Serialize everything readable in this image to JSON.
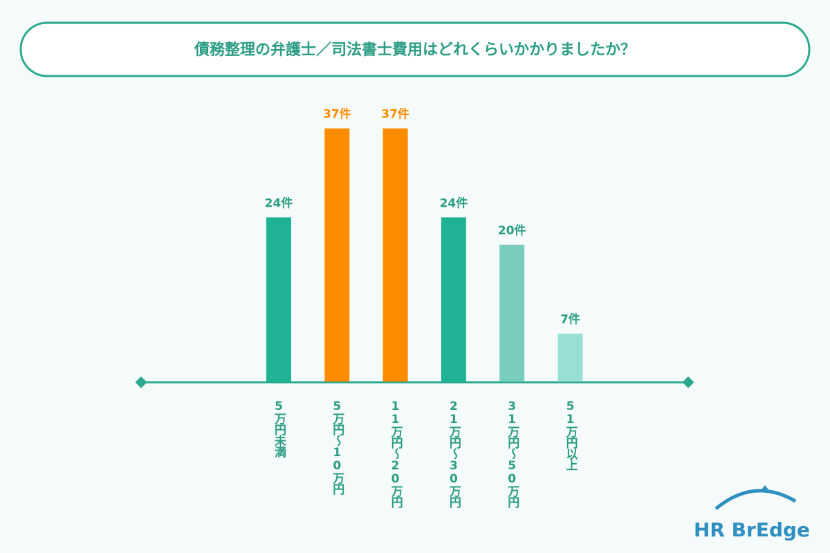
{
  "chart_data": {
    "type": "bar",
    "title": "債務整理の弁護士／司法書士費用はどれくらいかかりましたか？",
    "categories": [
      "5万円未満",
      "5万円～10万円",
      "11万円～20万円",
      "21万円～30万円",
      "31万円～50万円",
      "51万円以上"
    ],
    "values": [
      24,
      37,
      37,
      24,
      20,
      7
    ],
    "value_labels": [
      "24件",
      "37件",
      "37件",
      "24件",
      "20件",
      "7件"
    ],
    "colors": [
      "#20b294",
      "#ff8c00",
      "#ff8c00",
      "#20b294",
      "#79cdbf",
      "#98e0d4"
    ],
    "label_colors": [
      "#2a9d84",
      "#ff8c00",
      "#ff8c00",
      "#2a9d84",
      "#2a9d84",
      "#2a9d84"
    ],
    "logo": "HR BrEdge"
  }
}
